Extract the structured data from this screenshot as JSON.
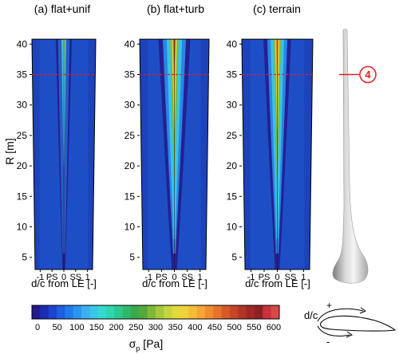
{
  "chart_data": {
    "type": "heatmap",
    "panels": [
      {
        "title": "(a) flat+unif",
        "intensity": 0.22,
        "spread": 0.55
      },
      {
        "title": "(b) flat+turb",
        "intensity": 1.0,
        "spread": 1.0
      },
      {
        "title": "(c) terrain",
        "intensity": 0.82,
        "spread": 0.85
      }
    ],
    "ylabel": "R [m]",
    "xlabel": "d/c from LE [-]",
    "ylim": [
      3,
      42
    ],
    "y_ticks": [
      5,
      10,
      15,
      20,
      25,
      30,
      35,
      40
    ],
    "x_ticks": [
      {
        "value": -1,
        "label": "-1"
      },
      {
        "value": -0.5,
        "label": "PS"
      },
      {
        "value": 0,
        "label": "0"
      },
      {
        "value": 0.5,
        "label": "SS"
      },
      {
        "value": 1,
        "label": "1"
      }
    ],
    "xlim": [
      -1.35,
      1.35
    ],
    "reference_line": {
      "R": 35,
      "color": "#e02020"
    },
    "marker_label": "4",
    "colorbar": {
      "label": "σ",
      "label_subscript": "p",
      "label_unit": " [Pa]",
      "ticks": [
        "0",
        "50",
        "100",
        "150",
        "200",
        "250",
        "300",
        "350",
        "400",
        "450",
        "500",
        "550",
        "600"
      ],
      "colors": [
        "#241a8a",
        "#1b2bb3",
        "#1c44cc",
        "#1f5ee0",
        "#2379ec",
        "#2a95f0",
        "#3ab0ee",
        "#3ac6e6",
        "#35d8d0",
        "#2fd6ad",
        "#2bc98c",
        "#30b86a",
        "#3aaa4c",
        "#56a83a",
        "#7eb936",
        "#a6c83a",
        "#c8d43c",
        "#e0da3c",
        "#f0d23a",
        "#f4bd36",
        "#f4a534",
        "#f08c30",
        "#e8722c",
        "#d65a28",
        "#c64526",
        "#b33424",
        "#a02824",
        "#8e2024",
        "#c8323c",
        "#d84848"
      ]
    },
    "airfoil_sketch": {
      "label": "d/c",
      "plus": "+",
      "minus": "-"
    }
  }
}
